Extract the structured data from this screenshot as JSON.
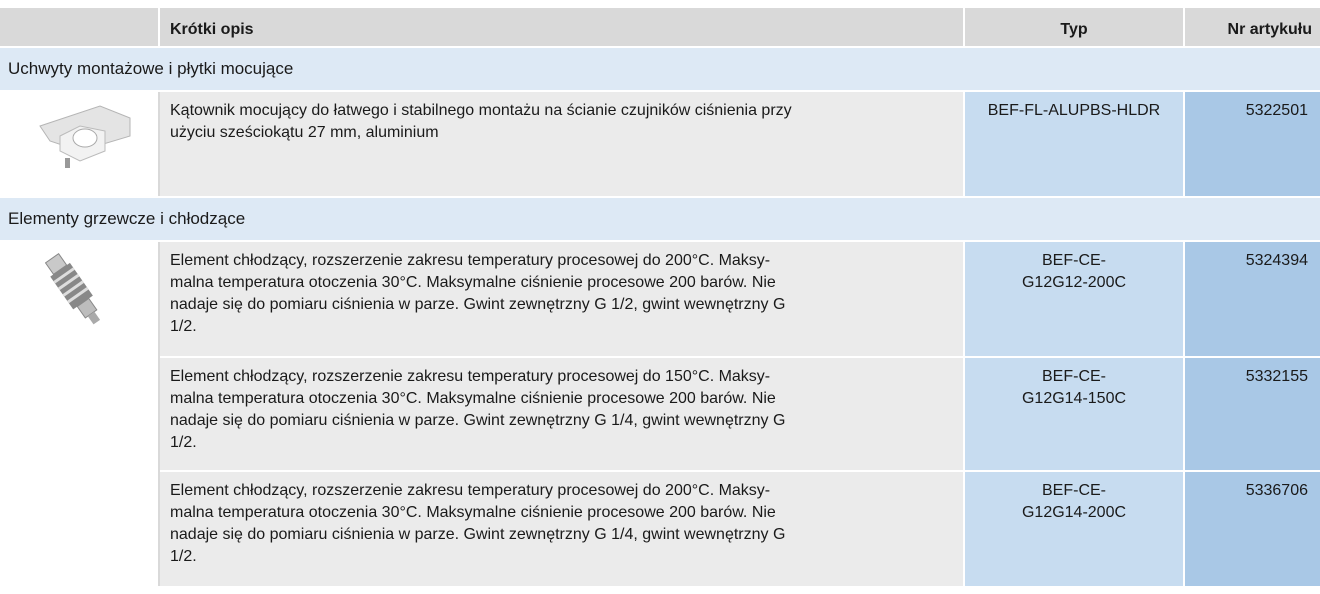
{
  "table": {
    "header": [
      "Krótki opis",
      "Typ",
      "Nr artykułu"
    ],
    "sections": [
      {
        "title": "Uchwyty montażowe i płytki mocujące",
        "rows": [
          {
            "description": [
              "Kątownik mocujący do łatwego i stabilnego montażu na ścianie czujników ciśnienia przy",
              "użyciu sześciokątu 27 mm, aluminium"
            ],
            "type": [
              "BEF-FL-ALUPBS-HLDR"
            ],
            "article": "5322501"
          }
        ]
      },
      {
        "title": "Elementy grzewcze i chłodzące",
        "rows": [
          {
            "description": [
              "Element chłodzący, rozszerzenie zakresu temperatury procesowej do 200°C. Maksy-",
              "malna temperatura otoczenia 30°C. Maksymalne ciśnienie procesowe 200 barów. Nie",
              "nadaje się do pomiaru ciśnienia w parze. Gwint zewnętrzny G 1/2, gwint wewnętrzny G",
              "1/2."
            ],
            "type": [
              "BEF-CE-",
              "G12G12-200C"
            ],
            "article": "5324394"
          },
          {
            "description": [
              "Element chłodzący, rozszerzenie zakresu temperatury procesowej do 150°C. Maksy-",
              "malna temperatura otoczenia 30°C. Maksymalne ciśnienie procesowe 200 barów. Nie",
              "nadaje się do pomiaru ciśnienia w parze. Gwint zewnętrzny G 1/4, gwint wewnętrzny G",
              "1/2."
            ],
            "type": [
              "BEF-CE-",
              "G12G14-150C"
            ],
            "article": "5332155"
          },
          {
            "description": [
              "Element chłodzący, rozszerzenie zakresu temperatury procesowej do 200°C. Maksy-",
              "malna temperatura otoczenia 30°C. Maksymalne ciśnienie procesowe 200 barów. Nie",
              "nadaje się do pomiaru ciśnienia w parze. Gwint zewnętrzny G 1/4, gwint wewnętrzny G",
              "1/2."
            ],
            "type": [
              "BEF-CE-",
              "G12G14-200C"
            ],
            "article": "5336706"
          }
        ]
      }
    ]
  }
}
